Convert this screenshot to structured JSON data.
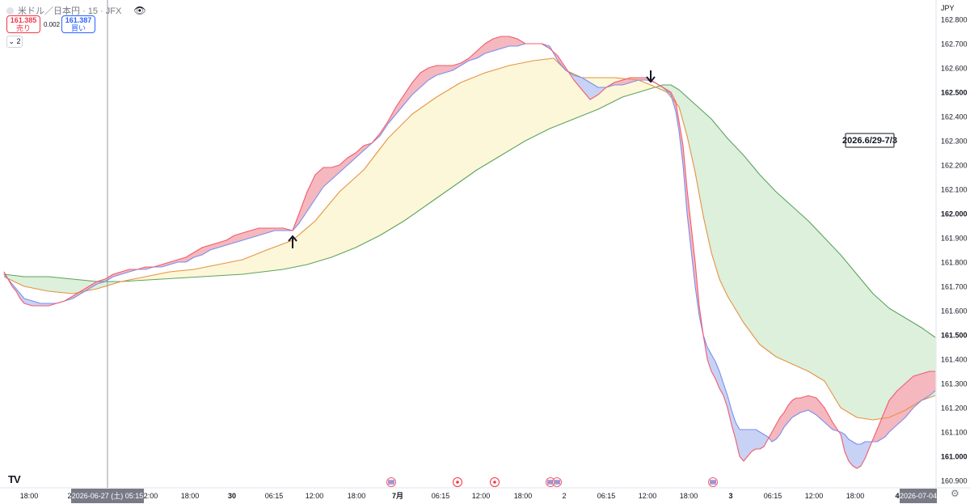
{
  "header": {
    "symbol": "米ドル／日本円 · 15 · JFX",
    "sell_price": "161.385",
    "sell_label": "売り",
    "spread": "0.002",
    "buy_price": "161.387",
    "buy_label": "買い",
    "indicator_count": "2"
  },
  "annotation": "2026.6/29-7/3",
  "currency": "JPY",
  "colors": {
    "red_fill": "#f5b8bf",
    "blue_fill": "#c9d2f5",
    "red_line": "#f15c6e",
    "blue_line": "#7a8ff0",
    "orange_line": "#e8923f",
    "green_line": "#5ea35e",
    "yellow_fill": "#fcf7d9",
    "green_fill": "#dcf0dc"
  },
  "chart_data": {
    "type": "line",
    "y_axis_labels": [
      "162.800",
      "162.700",
      "162.600",
      "162.500",
      "162.400",
      "162.300",
      "162.200",
      "162.100",
      "162.000",
      "161.900",
      "161.800",
      "161.700",
      "161.600",
      "161.500",
      "161.400",
      "161.300",
      "161.200",
      "161.100",
      "161.000",
      "160.900"
    ],
    "y_axis_bold": [
      "162.500",
      "162.000",
      "161.500",
      "161.000"
    ],
    "ylim": [
      160.87,
      162.88
    ],
    "xlim": [
      0,
      1152
    ],
    "x_axis_labels": [
      "18:00",
      "2",
      "12:00",
      "18:00",
      "30",
      "06:15",
      "12:00",
      "18:00",
      "7月",
      "06:15",
      "12:00",
      "18:00",
      "2",
      "06:15",
      "12:00",
      "18:00",
      "3",
      "06:15",
      "12:00",
      "18:00",
      "4"
    ],
    "x_axis_positions": [
      36,
      86,
      184,
      235,
      287,
      339,
      389,
      441,
      492,
      545,
      595,
      647,
      698,
      750,
      801,
      852,
      904,
      956,
      1007,
      1058,
      1110
    ],
    "x_axis_bold": [
      "2",
      "30",
      "7月",
      "2",
      "3",
      "4"
    ],
    "crosshair_label": "2026-06-27 (土)  05:15",
    "crosshair_x": 133,
    "last_date_label": "2026-07-04",
    "series": [
      {
        "name": "",
        "color": "red",
        "x": [
          5,
          10,
          15,
          20,
          25,
          30,
          40,
          50,
          60,
          70,
          80,
          90,
          100,
          110,
          120,
          130,
          140,
          150,
          160,
          170,
          180,
          190,
          200,
          210,
          220,
          230,
          240,
          250,
          260,
          270,
          280,
          290,
          300,
          310,
          320,
          330,
          340,
          350,
          362,
          370,
          380,
          390,
          400,
          410,
          420,
          430,
          440,
          450,
          460,
          470,
          480,
          490,
          500,
          510,
          520,
          530,
          540,
          550,
          560,
          570,
          580,
          590,
          600,
          610,
          620,
          630,
          640,
          650,
          660,
          670,
          680,
          690,
          700,
          710,
          720,
          730,
          740,
          750,
          760,
          770,
          780,
          790,
          800,
          810,
          820,
          830,
          836,
          840,
          845,
          850,
          855,
          860,
          865,
          870,
          875,
          880,
          885,
          890,
          895,
          900,
          905,
          910,
          915,
          920,
          925,
          930,
          935,
          940,
          945,
          950,
          955,
          960,
          965,
          970,
          975,
          980,
          985,
          990,
          1000,
          1010,
          1020,
          1030,
          1040,
          1045,
          1050,
          1055,
          1060,
          1065,
          1070,
          1075,
          1080,
          1085,
          1090,
          1095,
          1100,
          1110,
          1120,
          1130,
          1140,
          1150,
          1157
        ],
        "y": [
          161.76,
          161.73,
          161.7,
          161.68,
          161.65,
          161.63,
          161.62,
          161.62,
          161.62,
          161.63,
          161.64,
          161.66,
          161.68,
          161.7,
          161.72,
          161.73,
          161.75,
          161.76,
          161.77,
          161.77,
          161.78,
          161.78,
          161.79,
          161.8,
          161.81,
          161.82,
          161.84,
          161.86,
          161.87,
          161.88,
          161.89,
          161.91,
          161.92,
          161.93,
          161.94,
          161.94,
          161.94,
          161.94,
          161.93,
          162.0,
          162.09,
          162.16,
          162.19,
          162.19,
          162.2,
          162.23,
          162.25,
          162.28,
          162.29,
          162.33,
          162.38,
          162.44,
          162.49,
          162.54,
          162.58,
          162.6,
          162.61,
          162.61,
          162.61,
          162.62,
          162.64,
          162.67,
          162.7,
          162.72,
          162.73,
          162.73,
          162.72,
          162.7,
          162.7,
          162.7,
          162.68,
          162.65,
          162.6,
          162.55,
          162.51,
          162.47,
          162.49,
          162.52,
          162.54,
          162.55,
          162.56,
          162.56,
          162.56,
          162.54,
          162.52,
          162.5,
          162.46,
          162.38,
          162.28,
          162.1,
          161.95,
          161.8,
          161.62,
          161.5,
          161.4,
          161.35,
          161.32,
          161.28,
          161.25,
          161.2,
          161.13,
          161.07,
          161.0,
          160.98,
          161.0,
          161.02,
          161.03,
          161.03,
          161.04,
          161.07,
          161.1,
          161.13,
          161.16,
          161.18,
          161.21,
          161.23,
          161.24,
          161.24,
          161.25,
          161.24,
          161.2,
          161.14,
          161.09,
          161.02,
          160.98,
          160.96,
          160.95,
          160.96,
          160.99,
          161.03,
          161.07,
          161.11,
          161.15,
          161.19,
          161.23,
          161.27,
          161.3,
          161.33,
          161.34,
          161.35,
          161.35
        ]
      },
      {
        "name": "",
        "color": "blue",
        "x": [
          5,
          10,
          15,
          20,
          25,
          30,
          40,
          50,
          60,
          70,
          80,
          90,
          100,
          110,
          120,
          130,
          140,
          150,
          160,
          170,
          180,
          190,
          200,
          210,
          220,
          230,
          240,
          250,
          260,
          270,
          280,
          290,
          300,
          310,
          320,
          330,
          340,
          350,
          362,
          370,
          380,
          390,
          400,
          410,
          420,
          430,
          440,
          450,
          460,
          470,
          480,
          490,
          500,
          510,
          520,
          530,
          540,
          550,
          560,
          570,
          580,
          590,
          600,
          610,
          620,
          630,
          640,
          650,
          660,
          670,
          680,
          690,
          700,
          710,
          720,
          730,
          740,
          750,
          760,
          770,
          780,
          790,
          800,
          810,
          820,
          830,
          836,
          840,
          845,
          850,
          855,
          860,
          865,
          870,
          875,
          880,
          885,
          890,
          895,
          900,
          905,
          910,
          915,
          920,
          925,
          930,
          935,
          940,
          945,
          950,
          955,
          960,
          965,
          970,
          975,
          980,
          985,
          990,
          1000,
          1010,
          1020,
          1030,
          1040,
          1045,
          1050,
          1055,
          1060,
          1065,
          1070,
          1075,
          1080,
          1085,
          1090,
          1095,
          1100,
          1110,
          1120,
          1130,
          1140,
          1150,
          1157
        ],
        "y": [
          161.75,
          161.73,
          161.71,
          161.69,
          161.67,
          161.65,
          161.64,
          161.63,
          161.63,
          161.63,
          161.64,
          161.65,
          161.67,
          161.69,
          161.71,
          161.72,
          161.74,
          161.75,
          161.76,
          161.77,
          161.77,
          161.78,
          161.78,
          161.79,
          161.8,
          161.8,
          161.82,
          161.83,
          161.85,
          161.86,
          161.87,
          161.88,
          161.89,
          161.9,
          161.91,
          161.92,
          161.93,
          161.93,
          161.93,
          161.96,
          162.01,
          162.06,
          162.11,
          162.14,
          162.17,
          162.2,
          162.23,
          162.26,
          162.29,
          162.32,
          162.37,
          162.41,
          162.45,
          162.49,
          162.52,
          162.55,
          162.57,
          162.58,
          162.59,
          162.61,
          162.63,
          162.64,
          162.66,
          162.67,
          162.68,
          162.69,
          162.69,
          162.7,
          162.7,
          162.7,
          162.69,
          162.63,
          162.59,
          162.57,
          162.56,
          162.54,
          162.52,
          162.52,
          162.53,
          162.53,
          162.54,
          162.55,
          162.55,
          162.54,
          162.52,
          162.49,
          162.42,
          162.34,
          162.2,
          162.0,
          161.85,
          161.7,
          161.58,
          161.5,
          161.45,
          161.42,
          161.39,
          161.35,
          161.3,
          161.25,
          161.19,
          161.14,
          161.11,
          161.11,
          161.11,
          161.11,
          161.11,
          161.1,
          161.09,
          161.08,
          161.06,
          161.07,
          161.09,
          161.12,
          161.14,
          161.16,
          161.17,
          161.18,
          161.19,
          161.17,
          161.14,
          161.11,
          161.1,
          161.09,
          161.07,
          161.06,
          161.05,
          161.05,
          161.06,
          161.06,
          161.06,
          161.06,
          161.07,
          161.08,
          161.1,
          161.13,
          161.16,
          161.2,
          161.23,
          161.25,
          161.27
        ]
      },
      {
        "name": "",
        "color": "orange",
        "x": [
          5,
          30,
          60,
          90,
          120,
          150,
          180,
          210,
          240,
          270,
          300,
          330,
          362,
          390,
          420,
          450,
          480,
          510,
          540,
          570,
          600,
          630,
          660,
          685,
          700,
          720,
          740,
          760,
          790,
          805,
          825,
          840,
          850,
          860,
          870,
          880,
          890,
          900,
          920,
          940,
          960,
          980,
          1000,
          1020,
          1040,
          1060,
          1080,
          1100,
          1120,
          1140,
          1157
        ],
        "y": [
          161.74,
          161.7,
          161.68,
          161.67,
          161.69,
          161.72,
          161.74,
          161.76,
          161.77,
          161.79,
          161.81,
          161.85,
          161.89,
          161.97,
          162.09,
          162.18,
          162.31,
          162.41,
          162.48,
          162.54,
          162.58,
          162.61,
          162.63,
          162.64,
          162.59,
          162.56,
          162.56,
          162.56,
          162.55,
          162.53,
          162.5,
          162.44,
          162.32,
          162.17,
          161.99,
          161.84,
          161.73,
          161.66,
          161.55,
          161.46,
          161.41,
          161.38,
          161.35,
          161.31,
          161.2,
          161.16,
          161.15,
          161.16,
          161.19,
          161.23,
          161.25
        ]
      },
      {
        "name": "",
        "color": "green",
        "x": [
          5,
          30,
          60,
          90,
          120,
          150,
          200,
          250,
          300,
          350,
          380,
          410,
          440,
          470,
          500,
          530,
          560,
          590,
          620,
          650,
          680,
          710,
          740,
          770,
          800,
          820,
          830,
          840,
          860,
          880,
          900,
          920,
          940,
          960,
          980,
          1000,
          1020,
          1040,
          1060,
          1080,
          1100,
          1120,
          1140,
          1157
        ],
        "y": [
          161.75,
          161.74,
          161.74,
          161.73,
          161.72,
          161.72,
          161.73,
          161.74,
          161.75,
          161.77,
          161.79,
          161.82,
          161.86,
          161.91,
          161.97,
          162.04,
          162.11,
          162.18,
          162.24,
          162.3,
          162.35,
          162.39,
          162.43,
          162.48,
          162.51,
          162.53,
          162.53,
          162.51,
          162.45,
          162.39,
          162.31,
          162.24,
          162.16,
          162.09,
          162.03,
          161.97,
          161.9,
          161.83,
          161.75,
          161.67,
          161.61,
          161.57,
          161.53,
          161.49
        ]
      }
    ],
    "markers": [
      {
        "type": "arrow-up",
        "x": 362,
        "y": 161.89
      },
      {
        "type": "arrow-down",
        "x": 805,
        "y": 162.55
      }
    ],
    "event_icons": [
      {
        "kind": "flag",
        "x": 484
      },
      {
        "kind": "dot",
        "x": 566
      },
      {
        "kind": "dot",
        "x": 612
      },
      {
        "kind": "flag",
        "x": 681
      },
      {
        "kind": "flag",
        "x": 689
      },
      {
        "kind": "flag",
        "x": 882
      }
    ]
  }
}
